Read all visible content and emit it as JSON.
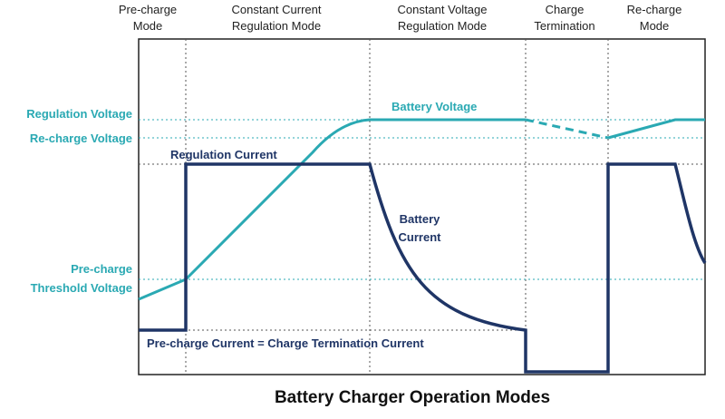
{
  "modes": [
    {
      "lines": [
        "Pre-charge",
        "Mode"
      ]
    },
    {
      "lines": [
        "Constant Current",
        "Regulation Mode"
      ]
    },
    {
      "lines": [
        "Constant Voltage",
        "Regulation Mode"
      ]
    },
    {
      "lines": [
        "Charge",
        "Termination"
      ]
    },
    {
      "lines": [
        "Re-charge",
        "Mode"
      ]
    }
  ],
  "levels": [
    {
      "lines": [
        "Regulation Voltage"
      ]
    },
    {
      "lines": [
        "Re-charge Voltage"
      ]
    },
    {
      "lines": [
        "Pre-charge",
        "Threshold Voltage"
      ]
    }
  ],
  "curve_labels": {
    "battery_voltage": "Battery Voltage",
    "regulation_current": "Regulation Current",
    "battery_current": [
      "Battery",
      "Current"
    ],
    "precharge_current": "Pre-charge Current = Charge Termination Current"
  },
  "title": "Battery Charger Operation Modes"
}
